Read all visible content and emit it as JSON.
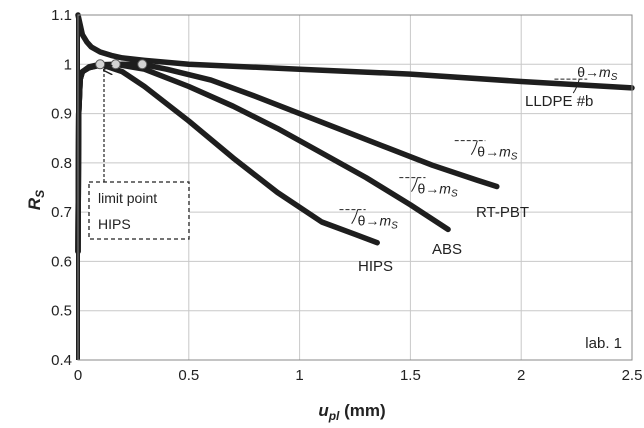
{
  "chart_data": {
    "type": "line",
    "xlabel_main": "u",
    "xlabel_sub": "pl",
    "xlabel_unit": " (mm)",
    "ylabel_main": "R",
    "ylabel_sub": "S",
    "xlim": [
      0,
      2.5
    ],
    "ylim": [
      0.4,
      1.1
    ],
    "xticks": [
      "0",
      "0.5",
      "1",
      "1.5",
      "2",
      "2.5"
    ],
    "yticks": [
      "0.4",
      "0.5",
      "0.6",
      "0.7",
      "0.8",
      "0.9",
      "1",
      "1.1"
    ],
    "grid": true,
    "panel_label": "lab. 1",
    "series": [
      {
        "name": "LLDPE #b",
        "x": [
          0.0,
          0.01,
          0.02,
          0.04,
          0.06,
          0.1,
          0.15,
          0.2,
          0.3,
          0.5,
          1.0,
          1.5,
          2.0,
          2.5
        ],
        "y": [
          1.1,
          1.08,
          1.06,
          1.045,
          1.035,
          1.025,
          1.018,
          1.013,
          1.008,
          1.0,
          0.99,
          0.98,
          0.965,
          0.952
        ]
      },
      {
        "name": "RT-PBT",
        "x": [
          0.0,
          0.003,
          0.01,
          0.02,
          0.05,
          0.1,
          0.2,
          0.29,
          0.4,
          0.6,
          0.8,
          1.0,
          1.2,
          1.4,
          1.6,
          1.8,
          1.89
        ],
        "y": [
          0.62,
          0.9,
          0.97,
          0.985,
          0.993,
          0.998,
          1.0,
          1.0,
          0.99,
          0.968,
          0.935,
          0.9,
          0.865,
          0.83,
          0.795,
          0.765,
          0.752
        ]
      },
      {
        "name": "ABS",
        "x": [
          0.0,
          0.003,
          0.01,
          0.02,
          0.05,
          0.1,
          0.17,
          0.3,
          0.5,
          0.7,
          0.9,
          1.1,
          1.3,
          1.5,
          1.67
        ],
        "y": [
          0.62,
          0.9,
          0.97,
          0.985,
          0.993,
          0.999,
          1.0,
          0.99,
          0.955,
          0.915,
          0.87,
          0.82,
          0.77,
          0.715,
          0.665
        ]
      },
      {
        "name": "HIPS",
        "x": [
          0.0,
          0.003,
          0.01,
          0.02,
          0.05,
          0.1,
          0.2,
          0.3,
          0.5,
          0.7,
          0.9,
          1.1,
          1.25,
          1.35
        ],
        "y": [
          0.62,
          0.9,
          0.97,
          0.985,
          0.995,
          1.0,
          0.985,
          0.955,
          0.885,
          0.81,
          0.74,
          0.68,
          0.655,
          0.638
        ]
      }
    ],
    "limit_points": [
      {
        "x": 0.1,
        "y": 1.0
      },
      {
        "x": 0.17,
        "y": 1.0
      },
      {
        "x": 0.29,
        "y": 1.0
      }
    ],
    "annotations": {
      "limit_point_line1": "limit point",
      "limit_point_line2": "HIPS",
      "theta": "θ→",
      "m": "m",
      "s": "S"
    },
    "slope_marks": [
      {
        "x": 1.28,
        "y": 0.705,
        "x2": 1.18
      },
      {
        "x": 1.55,
        "y": 0.77,
        "x2": 1.45
      },
      {
        "x": 1.82,
        "y": 0.845,
        "x2": 1.7
      },
      {
        "x": 2.28,
        "y": 0.97,
        "x2": 2.15
      }
    ]
  }
}
